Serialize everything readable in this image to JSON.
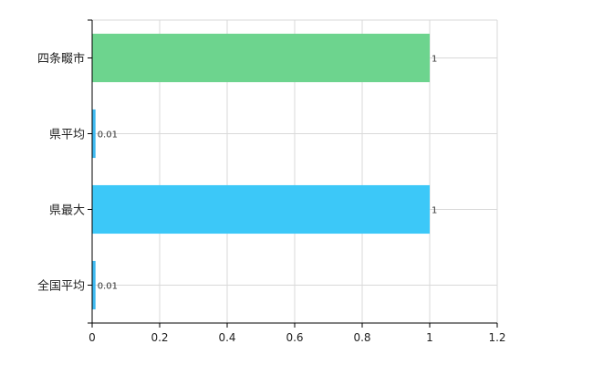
{
  "chart_data": {
    "type": "bar",
    "orientation": "horizontal",
    "title": "",
    "xlabel": "",
    "ylabel": "",
    "categories": [
      "四条畷市",
      "県平均",
      "県最大",
      "全国平均"
    ],
    "values": [
      1,
      0.01,
      1,
      0.01
    ],
    "value_labels": [
      "1",
      "0.01",
      "1",
      "0.01"
    ],
    "bar_colors": [
      "#6dd48e",
      "#3cb8f0",
      "#3cc8f8",
      "#3cb8f0"
    ],
    "xlim": [
      0,
      1.2
    ],
    "xticks": [
      0,
      0.2,
      0.4,
      0.6,
      0.8,
      1,
      1.2
    ],
    "xtick_labels": [
      "0",
      "0.2",
      "0.4",
      "0.6",
      "0.8",
      "1",
      "1.2"
    ],
    "grid": true,
    "legend": "none"
  }
}
